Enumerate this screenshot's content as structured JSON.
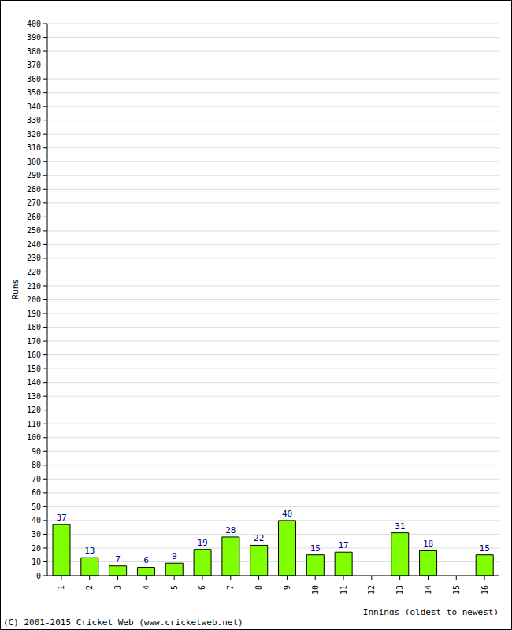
{
  "chart_data": {
    "type": "bar",
    "categories": [
      "1",
      "2",
      "3",
      "4",
      "5",
      "6",
      "7",
      "8",
      "9",
      "10",
      "11",
      "12",
      "13",
      "14",
      "15",
      "16"
    ],
    "values": [
      37,
      13,
      7,
      6,
      9,
      19,
      28,
      22,
      40,
      15,
      17,
      0,
      31,
      18,
      0,
      15
    ],
    "color": "#80ff00",
    "y_label": "Runs",
    "x_label": "Innings (oldest to newest)",
    "annotation": "(C) 2001-2015 Cricket Web (www.cricketweb.net)",
    "ylim": [
      0,
      400
    ],
    "yticks": [
      0,
      10,
      20,
      30,
      40,
      50,
      60,
      70,
      80,
      90,
      100,
      110,
      120,
      130,
      140,
      150,
      160,
      170,
      180,
      190,
      200,
      210,
      220,
      230,
      240,
      250,
      260,
      270,
      280,
      290,
      300,
      310,
      320,
      330,
      340,
      350,
      360,
      370,
      380,
      390,
      400
    ],
    "grid": true,
    "data_labels": true
  }
}
